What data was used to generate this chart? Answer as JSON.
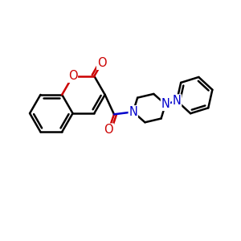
{
  "bg": "#ffffff",
  "bond_lw": 1.8,
  "BC": "#000000",
  "RC": "#cc0000",
  "BLC": "#0000cc",
  "FS": 10.5,
  "xlim": [
    0,
    10
  ],
  "ylim": [
    0,
    10
  ]
}
